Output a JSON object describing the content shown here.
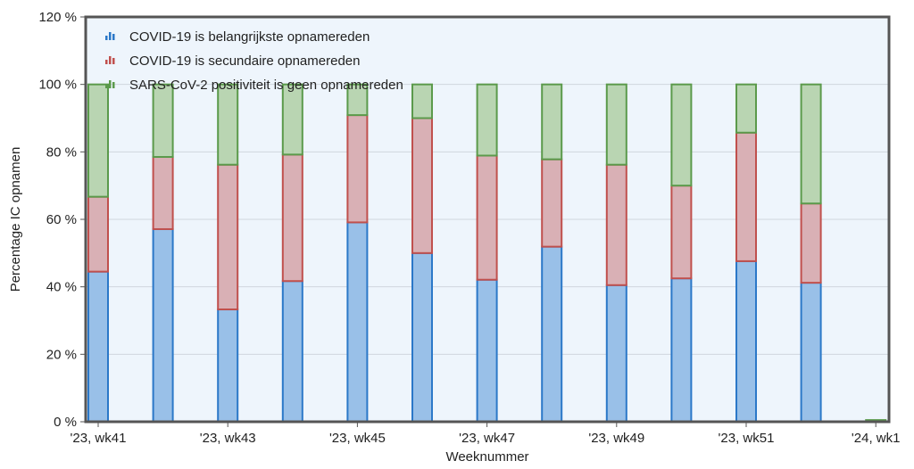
{
  "chart_data": {
    "type": "bar",
    "stacked": true,
    "title": "",
    "xlabel": "Weeknummer",
    "ylabel": "Percentage IC opnamen",
    "ylim": [
      0,
      120
    ],
    "yticks": [
      "0 %",
      "20 %",
      "40 %",
      "60 %",
      "80 %",
      "100 %",
      "120 %"
    ],
    "ytick_values": [
      0,
      20,
      40,
      60,
      80,
      100,
      120
    ],
    "x_tick_labels": [
      "'23, wk41",
      "'23, wk43",
      "'23, wk45",
      "'23, wk47",
      "'23, wk49",
      "'23, wk51",
      "'24, wk1"
    ],
    "x_tick_positions": [
      0,
      2,
      4,
      6,
      8,
      10,
      12
    ],
    "categories": [
      "'23, wk41",
      "'23, wk42",
      "'23, wk43",
      "'23, wk44",
      "'23, wk45",
      "'23, wk46",
      "'23, wk47",
      "'23, wk48",
      "'23, wk49",
      "'23, wk50",
      "'23, wk51",
      "'23, wk52",
      "'24, wk1"
    ],
    "series": [
      {
        "name": "COVID-19 is belangrijkste opnamereden",
        "values": [
          44.5,
          57.1,
          33.3,
          41.7,
          59.1,
          50.0,
          42.1,
          51.9,
          40.5,
          42.5,
          47.6,
          41.2,
          0
        ]
      },
      {
        "name": "COVID-19 is secundaire opnamereden",
        "values": [
          22.2,
          21.4,
          42.9,
          37.5,
          31.8,
          40.0,
          36.8,
          25.9,
          35.7,
          27.5,
          38.1,
          23.5,
          0
        ]
      },
      {
        "name": "SARS-CoV-2 positiviteit is geen opnamereden",
        "values": [
          33.3,
          21.5,
          23.8,
          20.8,
          9.1,
          10.0,
          21.1,
          22.2,
          23.8,
          30.0,
          14.3,
          35.3,
          0.5
        ]
      }
    ],
    "grid": true,
    "legend_position": "top-left",
    "colors": {
      "series_fill": [
        "#99c0e8",
        "#d9b0b5",
        "#b9d5b2"
      ],
      "series_stroke": [
        "#2b78c8",
        "#c0504d",
        "#5b9a4b"
      ],
      "plot_background": "#eef5fc",
      "frame": "#555555",
      "grid": "#d0d6de"
    }
  }
}
